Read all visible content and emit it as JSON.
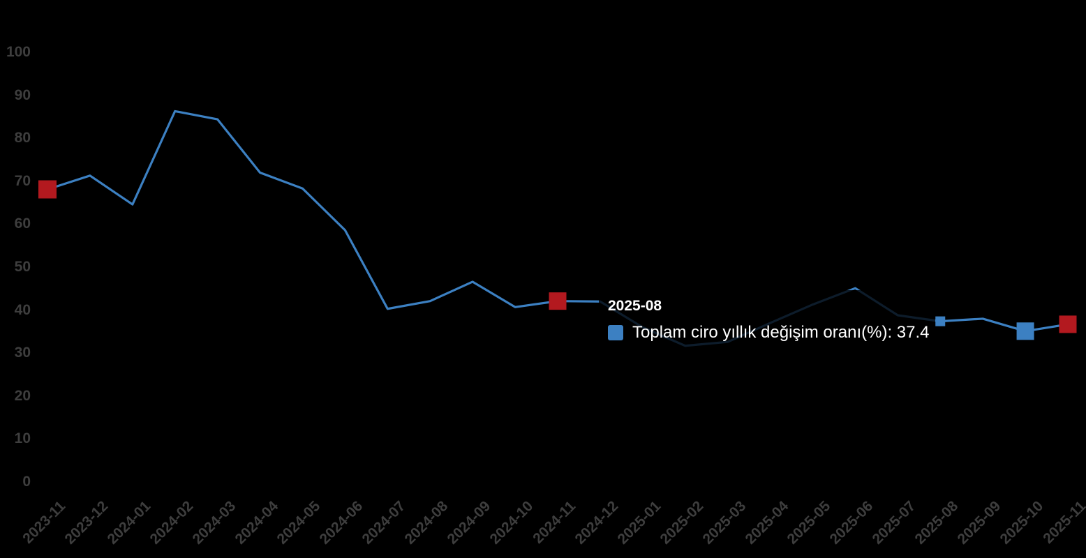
{
  "chart": {
    "background": "#000000",
    "line_color": "#3c80c2",
    "red_marker_color": "#b3191f",
    "blue_marker_color": "#3c80c2",
    "axis_label_color": "#3e3e3e",
    "tooltip_text_color": "#ffffff"
  },
  "chart_data": {
    "type": "line",
    "title": "",
    "categories": [
      "2023-11",
      "2023-12",
      "2024-01",
      "2024-02",
      "2024-03",
      "2024-04",
      "2024-05",
      "2024-06",
      "2024-07",
      "2024-08",
      "2024-09",
      "2024-10",
      "2024-11",
      "2024-12",
      "2025-01",
      "2025-02",
      "2025-03",
      "2025-04",
      "2025-05",
      "2025-06",
      "2025-07",
      "2025-08",
      "2025-09",
      "2025-10",
      "2025-11"
    ],
    "series": [
      {
        "name": "Toplam ciro yıllık değişim oranı(%)",
        "values": [
          68.1,
          71.3,
          64.6,
          86.3,
          84.4,
          72.0,
          68.3,
          58.6,
          40.3,
          42.1,
          46.6,
          40.7,
          42.1,
          42.0,
          36.0,
          31.7,
          32.6,
          37.0,
          41.3,
          45.1,
          38.8,
          37.4,
          38.0,
          35.1,
          36.7
        ]
      }
    ],
    "ylim": [
      0,
      100
    ],
    "y_ticks": [
      0,
      10,
      20,
      30,
      40,
      50,
      60,
      70,
      80,
      90,
      100
    ],
    "xlabel": "",
    "ylabel": "",
    "grid": false,
    "legend_position": "none",
    "x_label_rotation": 45,
    "markers": [
      {
        "category": "2023-11",
        "value": 68.1,
        "color": "#b3191f",
        "size": 26
      },
      {
        "category": "2024-11",
        "value": 42.1,
        "color": "#b3191f",
        "size": 25
      },
      {
        "category": "2025-08",
        "value": 37.4,
        "color": "#3c80c2",
        "size": 14
      },
      {
        "category": "2025-10",
        "value": 35.1,
        "color": "#3c80c2",
        "size": 25
      },
      {
        "category": "2025-11",
        "value": 36.7,
        "color": "#b3191f",
        "size": 25
      }
    ],
    "hovered_point": {
      "category": "2025-08",
      "value": 37.4
    }
  },
  "tooltip": {
    "title": "2025-08",
    "series_label": "Toplam ciro yıllık değişim oranı(%)",
    "value": "37.4",
    "text": "Toplam ciro yıllık değişim oranı(%): 37.4"
  }
}
